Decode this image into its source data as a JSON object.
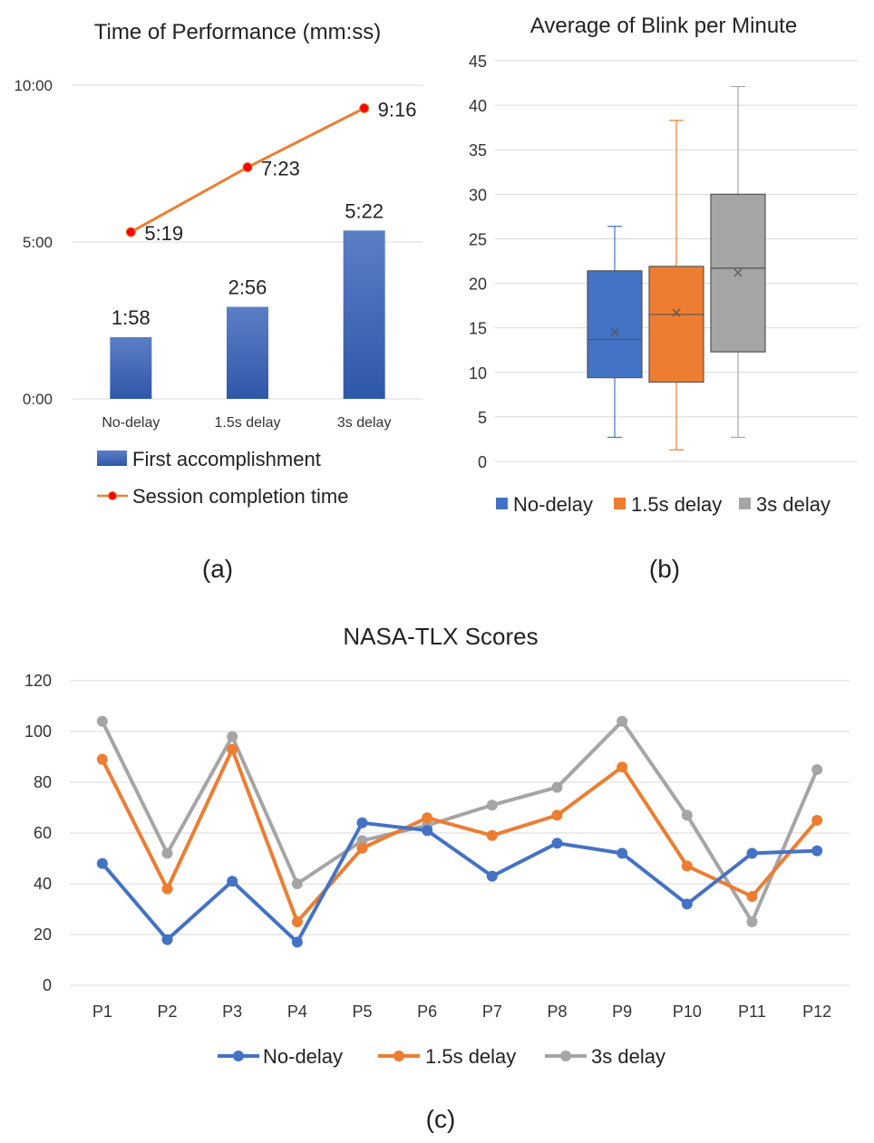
{
  "chart_data": [
    {
      "type": "bar",
      "title": "Time of Performance (mm:ss)",
      "categories": [
        "No-delay",
        "1.5s delay",
        "3s delay"
      ],
      "yaxis": {
        "ticks": [
          "0:00",
          "5:00",
          "10:00"
        ],
        "tick_values": [
          0,
          300,
          600
        ],
        "ylim": [
          0,
          600
        ]
      },
      "grid": true,
      "legend_position": "bottom",
      "series": [
        {
          "name": "First accomplishment",
          "kind": "bar",
          "values": [
            118,
            176,
            322
          ],
          "labels": [
            "1:58",
            "2:56",
            "5:22"
          ],
          "color": "#3f63b3"
        },
        {
          "name": "Session completion time",
          "kind": "line",
          "values": [
            319,
            443,
            556
          ],
          "labels": [
            "5:19",
            "7:23",
            "9:16"
          ],
          "color": "#ed7d31",
          "marker_color": "#ff0000"
        }
      ],
      "caption": "(a)"
    },
    {
      "type": "box",
      "title": "Average of Blink per Minute",
      "categories": [
        "No-delay",
        "1.5s delay",
        "3s delay"
      ],
      "yaxis": {
        "ticks": [
          "0",
          "5",
          "10",
          "15",
          "20",
          "25",
          "30",
          "35",
          "40",
          "45"
        ],
        "ylim": [
          0,
          45
        ]
      },
      "grid": true,
      "legend_position": "bottom",
      "series": [
        {
          "name": "No-delay",
          "color": "#4472c4",
          "min": 2.7,
          "q1": 9.4,
          "median": 13.7,
          "mean": 14.5,
          "q3": 21.4,
          "max": 26.4
        },
        {
          "name": "1.5s delay",
          "color": "#ed7d31",
          "min": 1.3,
          "q1": 8.9,
          "median": 16.5,
          "mean": 16.7,
          "q3": 21.9,
          "max": 38.3
        },
        {
          "name": "3s delay",
          "color": "#a5a5a5",
          "min": 2.7,
          "q1": 12.3,
          "median": 21.7,
          "mean": 21.2,
          "q3": 30.0,
          "max": 42.1
        }
      ],
      "caption": "(b)"
    },
    {
      "type": "line",
      "title": "NASA-TLX Scores",
      "categories": [
        "P1",
        "P2",
        "P3",
        "P4",
        "P5",
        "P6",
        "P7",
        "P8",
        "P9",
        "P10",
        "P11",
        "P12"
      ],
      "yaxis": {
        "ticks": [
          "0",
          "20",
          "40",
          "60",
          "80",
          "100",
          "120"
        ],
        "ylim": [
          0,
          120
        ]
      },
      "grid": true,
      "legend_position": "bottom",
      "series": [
        {
          "name": "No-delay",
          "color": "#4472c4",
          "values": [
            48,
            18,
            41,
            17,
            64,
            61,
            43,
            56,
            52,
            32,
            52,
            53
          ]
        },
        {
          "name": "1.5s delay",
          "color": "#ed7d31",
          "values": [
            89,
            38,
            93,
            25,
            54,
            66,
            59,
            67,
            86,
            47,
            35,
            65
          ]
        },
        {
          "name": "3s delay",
          "color": "#a5a5a5",
          "values": [
            104,
            52,
            98,
            40,
            57,
            63,
            71,
            78,
            104,
            67,
            25,
            85
          ]
        }
      ],
      "caption": "(c)"
    }
  ]
}
